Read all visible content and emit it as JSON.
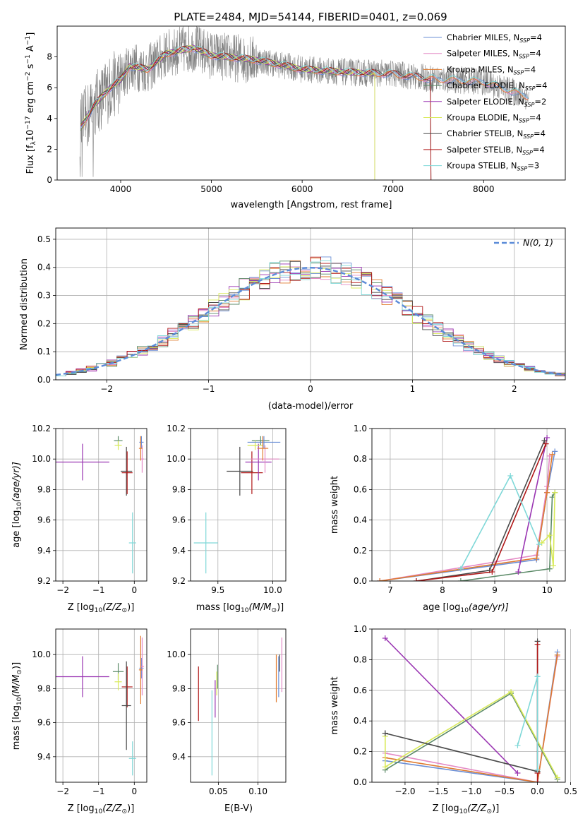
{
  "figure_title": "PLATE=2484, MJD=54144, FIBERID=0401, z=0.069",
  "colors": {
    "Chabrier MILES": "#6b8fd6",
    "Salpeter MILES": "#e48ac5",
    "Kroupa MILES": "#e07b2f",
    "Chabrier ELODIE": "#5c8b68",
    "Salpeter ELODIE": "#9a35b2",
    "Kroupa ELODIE": "#d8ea58",
    "Chabrier STELIB": "#4a4a4a",
    "Salpeter STELIB": "#b01818",
    "Kroupa STELIB": "#7fd8d8",
    "data": "#808080",
    "normal": "#5b8bd8"
  },
  "chart_data": [
    {
      "id": "spectrum",
      "type": "line",
      "title": "PLATE=2484, MJD=54144, FIBERID=0401, z=0.069",
      "xlabel": "wavelength [Angstrom, rest frame]",
      "ylabel_parts": [
        "Flux [f",
        "λ",
        "10",
        "−17",
        " erg cm",
        "−2",
        " s",
        "−1",
        " A",
        "−1",
        "]"
      ],
      "xlim": [
        3300,
        8900
      ],
      "ylim": [
        0,
        10
      ],
      "xticks": [
        4000,
        5000,
        6000,
        7000,
        8000
      ],
      "yticks": [
        0,
        2,
        4,
        6,
        8
      ],
      "grid": false,
      "legend_position": "upper-right",
      "legend": [
        {
          "name": "Chabrier MILES",
          "n": "4"
        },
        {
          "name": "Salpeter MILES",
          "n": "4"
        },
        {
          "name": "Kroupa MILES",
          "n": "4"
        },
        {
          "name": "Chabrier ELODIE",
          "n": "4"
        },
        {
          "name": "Salpeter ELODIE",
          "n": "2"
        },
        {
          "name": "Kroupa ELODIE",
          "n": "4"
        },
        {
          "name": "Chabrier STELIB",
          "n": "4"
        },
        {
          "name": "Salpeter STELIB",
          "n": "4"
        },
        {
          "name": "Kroupa STELIB",
          "n": "3"
        }
      ],
      "continuum": {
        "x": [
          3550,
          3700,
          3900,
          4000,
          4100,
          4300,
          4500,
          4800,
          5000,
          5500,
          6000,
          6500,
          7000,
          7400,
          8000,
          8500
        ],
        "y": [
          3.3,
          4.8,
          6.1,
          6.5,
          7.4,
          7.2,
          8.2,
          8.6,
          8.1,
          7.8,
          7.2,
          7.0,
          6.9,
          6.6,
          6.4,
          5.4
        ]
      },
      "model_cutoffs": [
        {
          "series": "Kroupa ELODIE",
          "end": 6800
        },
        {
          "series": "Chabrier ELODIE",
          "end": 6800
        },
        {
          "series": "Salpeter ELODIE",
          "end": 6800
        },
        {
          "series": "Chabrier STELIB",
          "end": 7420
        },
        {
          "series": "Salpeter STELIB",
          "end": 7420
        },
        {
          "series": "Kroupa STELIB",
          "end": 8500
        }
      ]
    },
    {
      "id": "residuals",
      "type": "histogram",
      "xlabel": "(data-model)/error",
      "ylabel": "Normed distribution",
      "xlim": [
        -2.5,
        2.5
      ],
      "ylim": [
        0,
        0.54
      ],
      "xticks": [
        -2,
        -1,
        0,
        1,
        2
      ],
      "yticks": [
        0.0,
        0.1,
        0.2,
        0.3,
        0.4,
        0.5
      ],
      "grid": true,
      "legend_position": "upper-right",
      "legend_label": "N(0, 1)",
      "bin_width": 0.1
    },
    {
      "id": "age_vs_Z",
      "type": "scatter",
      "xlabel_parts": [
        "Z [log",
        "10",
        "(Z/Z",
        "⊙",
        ")]"
      ],
      "ylabel_parts": [
        "age  [log",
        "10",
        "(age/yr)]"
      ],
      "xlim": [
        -2.2,
        0.35
      ],
      "ylim": [
        9.2,
        10.2
      ],
      "xticks": [
        -2,
        -1,
        0
      ],
      "yticks": [
        9.2,
        9.4,
        9.6,
        9.8,
        10.0,
        10.2
      ],
      "grid": true,
      "points": [
        {
          "series": "Salpeter ELODIE",
          "x": -1.45,
          "y": 9.98,
          "xerr": 0.75,
          "yerr": 0.12
        },
        {
          "series": "Chabrier ELODIE",
          "x": -0.45,
          "y": 10.12,
          "xerr": 0.12,
          "yerr": 0.03
        },
        {
          "series": "Kroupa ELODIE",
          "x": -0.45,
          "y": 10.09,
          "xerr": 0.1,
          "yerr": 0.03
        },
        {
          "series": "Chabrier STELIB",
          "x": -0.22,
          "y": 9.92,
          "xerr": 0.16,
          "yerr": 0.16
        },
        {
          "series": "Salpeter STELIB",
          "x": -0.2,
          "y": 9.91,
          "xerr": 0.15,
          "yerr": 0.14
        },
        {
          "series": "Kroupa STELIB",
          "x": -0.05,
          "y": 9.45,
          "xerr": 0.1,
          "yerr": 0.2
        },
        {
          "series": "Chabrier MILES",
          "x": 0.2,
          "y": 10.11,
          "xerr": 0.06,
          "yerr": 0.04
        },
        {
          "series": "Salpeter MILES",
          "x": 0.22,
          "y": 10.0,
          "xerr": 0.05,
          "yerr": 0.09
        },
        {
          "series": "Kroupa MILES",
          "x": 0.18,
          "y": 10.07,
          "xerr": 0.05,
          "yerr": 0.08
        }
      ]
    },
    {
      "id": "age_vs_mass",
      "type": "scatter",
      "xlabel_parts": [
        "mass [log",
        "10",
        "(M/M",
        "⊙",
        ")]"
      ],
      "xlim": [
        9.25,
        10.12
      ],
      "ylim": [
        9.2,
        10.2
      ],
      "xticks": [
        9.5,
        10.0
      ],
      "yticks": [
        9.2,
        9.4,
        9.6,
        9.8,
        10.0,
        10.2
      ],
      "grid": true,
      "points": [
        {
          "series": "Kroupa STELIB",
          "x": 9.39,
          "y": 9.45,
          "xerr": 0.11,
          "yerr": 0.2
        },
        {
          "series": "Chabrier STELIB",
          "x": 9.7,
          "y": 9.92,
          "xerr": 0.12,
          "yerr": 0.16
        },
        {
          "series": "Salpeter STELIB",
          "x": 9.81,
          "y": 9.91,
          "xerr": 0.1,
          "yerr": 0.14
        },
        {
          "series": "Salpeter ELODIE",
          "x": 9.87,
          "y": 9.98,
          "xerr": 0.12,
          "yerr": 0.12
        },
        {
          "series": "Chabrier ELODIE",
          "x": 9.89,
          "y": 10.12,
          "xerr": 0.08,
          "yerr": 0.03
        },
        {
          "series": "Kroupa ELODIE",
          "x": 9.84,
          "y": 10.09,
          "xerr": 0.07,
          "yerr": 0.03
        },
        {
          "series": "Chabrier MILES",
          "x": 9.92,
          "y": 10.11,
          "xerr": 0.15,
          "yerr": 0.04
        },
        {
          "series": "Salpeter MILES",
          "x": 9.93,
          "y": 10.0,
          "xerr": 0.13,
          "yerr": 0.09
        },
        {
          "series": "Kroupa MILES",
          "x": 9.91,
          "y": 10.07,
          "xerr": 0.05,
          "yerr": 0.08
        }
      ]
    },
    {
      "id": "weight_vs_age",
      "type": "line",
      "xlabel_parts": [
        "age  [log",
        "10",
        "(age/yr)]"
      ],
      "ylabel": "mass weight",
      "xlim": [
        6.65,
        10.35
      ],
      "ylim": [
        0,
        1.0
      ],
      "xticks": [
        7,
        8,
        9,
        10
      ],
      "yticks": [
        0.0,
        0.2,
        0.4,
        0.6,
        0.8,
        1.0
      ],
      "grid": true,
      "series": [
        {
          "name": "Chabrier MILES",
          "x": [
            6.8,
            9.8,
            10.0,
            10.15
          ],
          "y": [
            0.0,
            0.14,
            0.58,
            0.85
          ]
        },
        {
          "name": "Salpeter MILES",
          "x": [
            6.8,
            9.8,
            10.0,
            10.05
          ],
          "y": [
            0.0,
            0.17,
            0.62,
            0.82
          ]
        },
        {
          "name": "Kroupa MILES",
          "x": [
            6.8,
            9.8,
            10.0,
            10.1
          ],
          "y": [
            0.0,
            0.15,
            0.58,
            0.83
          ]
        },
        {
          "name": "Chabrier ELODIE",
          "x": [
            8.35,
            10.05,
            10.1,
            10.15
          ],
          "y": [
            0.0,
            0.08,
            0.55,
            0.58
          ]
        },
        {
          "name": "Salpeter ELODIE",
          "x": [
            9.45,
            10.0
          ],
          "y": [
            0.06,
            0.94
          ]
        },
        {
          "name": "Kroupa ELODIE",
          "x": [
            9.9,
            10.05,
            10.12,
            10.15
          ],
          "y": [
            0.25,
            0.3,
            0.1,
            0.58
          ]
        },
        {
          "name": "Chabrier STELIB",
          "x": [
            7.5,
            8.9,
            9.95
          ],
          "y": [
            0.0,
            0.07,
            0.92
          ]
        },
        {
          "name": "Salpeter STELIB",
          "x": [
            7.5,
            8.95,
            9.98
          ],
          "y": [
            0.0,
            0.06,
            0.9
          ]
        },
        {
          "name": "Kroupa STELIB",
          "x": [
            8.35,
            9.3,
            9.85
          ],
          "y": [
            0.08,
            0.69,
            0.24
          ]
        }
      ]
    },
    {
      "id": "mass_vs_Z",
      "type": "scatter",
      "xlabel_parts": [
        "Z [log",
        "10",
        "(Z/Z",
        "⊙",
        ")]"
      ],
      "ylabel_parts": [
        "mass [log",
        "10",
        "(M/M",
        "⊙",
        ")]"
      ],
      "xlim": [
        -2.2,
        0.35
      ],
      "ylim": [
        9.25,
        10.15
      ],
      "xticks": [
        -2,
        -1,
        0
      ],
      "yticks": [
        9.4,
        9.6,
        9.8,
        10.0
      ],
      "grid": true,
      "points": [
        {
          "series": "Salpeter ELODIE",
          "x": -1.45,
          "y": 9.87,
          "xerr": 0.75,
          "yerr": 0.12
        },
        {
          "series": "Chabrier ELODIE",
          "x": -0.45,
          "y": 9.9,
          "xerr": 0.15,
          "yerr": 0.05
        },
        {
          "series": "Kroupa ELODIE",
          "x": -0.45,
          "y": 9.84,
          "xerr": 0.1,
          "yerr": 0.05
        },
        {
          "series": "Salpeter STELIB",
          "x": -0.2,
          "y": 9.81,
          "xerr": 0.15,
          "yerr": 0.12
        },
        {
          "series": "Chabrier STELIB",
          "x": -0.22,
          "y": 9.7,
          "xerr": 0.13,
          "yerr": 0.26
        },
        {
          "series": "Kroupa STELIB",
          "x": -0.05,
          "y": 9.39,
          "xerr": 0.1,
          "yerr": 0.1
        },
        {
          "series": "Chabrier MILES",
          "x": 0.2,
          "y": 9.92,
          "xerr": 0.06,
          "yerr": 0.06
        },
        {
          "series": "Salpeter MILES",
          "x": 0.22,
          "y": 9.93,
          "xerr": 0.05,
          "yerr": 0.17
        },
        {
          "series": "Kroupa MILES",
          "x": 0.18,
          "y": 9.91,
          "xerr": 0.05,
          "yerr": 0.2
        }
      ]
    },
    {
      "id": "mass_vs_EBV",
      "type": "scatter",
      "xlabel": "E(B-V)",
      "xlim": [
        0.015,
        0.135
      ],
      "ylim": [
        9.25,
        10.15
      ],
      "xticks": [
        0.05,
        0.1
      ],
      "xtick_labels": [
        "0.05",
        "0.10"
      ],
      "yticks": [
        9.4,
        9.6,
        9.8,
        10.0
      ],
      "grid": true,
      "points": [
        {
          "series": "Salpeter STELIB",
          "x": 0.025,
          "y": 9.77,
          "yerr": 0.16
        },
        {
          "series": "Kroupa STELIB",
          "x": 0.042,
          "y": 9.54,
          "yerr": 0.25
        },
        {
          "series": "Salpeter ELODIE",
          "x": 0.046,
          "y": 9.74,
          "yerr": 0.11
        },
        {
          "series": "Chabrier ELODIE",
          "x": 0.049,
          "y": 9.87,
          "yerr": 0.07
        },
        {
          "series": "Kroupa ELODIE",
          "x": 0.048,
          "y": 9.83,
          "yerr": 0.07
        },
        {
          "series": "Kroupa MILES",
          "x": 0.123,
          "y": 9.86,
          "yerr": 0.14
        },
        {
          "series": "Chabrier MILES",
          "x": 0.126,
          "y": 9.87,
          "yerr": 0.12
        },
        {
          "series": "Salpeter MILES",
          "x": 0.13,
          "y": 9.94,
          "yerr": 0.16
        },
        {
          "series": "Chabrier STELIB",
          "x": 0.127,
          "y": 9.95,
          "yerr": 0.05
        }
      ]
    },
    {
      "id": "weight_vs_Z",
      "type": "line",
      "xlabel_parts": [
        "Z [log",
        "10",
        "(Z/Z",
        "⊙",
        ")]"
      ],
      "ylabel": "mass weight",
      "xlim": [
        -2.5,
        0.42
      ],
      "ylim": [
        0,
        1.0
      ],
      "xticks": [
        -2.0,
        -1.5,
        -1.0,
        -0.5,
        0.0,
        0.5
      ],
      "xtick_labels": [
        "−2.0",
        "−1.5",
        "−1.0",
        "−0.5",
        "0.0",
        "0.5"
      ],
      "yticks": [
        0.0,
        0.2,
        0.4,
        0.6,
        0.8,
        1.0
      ],
      "grid": true,
      "series": [
        {
          "name": "Chabrier MILES",
          "x": [
            -2.3,
            0.0,
            0.3
          ],
          "y": [
            0.14,
            0.0,
            0.85
          ]
        },
        {
          "name": "Salpeter MILES",
          "x": [
            -2.3,
            0.0,
            0.3
          ],
          "y": [
            0.19,
            0.0,
            0.82
          ]
        },
        {
          "name": "Kroupa MILES",
          "x": [
            -2.3,
            0.0,
            0.3
          ],
          "y": [
            0.16,
            0.0,
            0.83
          ]
        },
        {
          "name": "Chabrier ELODIE",
          "x": [
            -2.3,
            -0.4,
            0.3
          ],
          "y": [
            0.08,
            0.58,
            0.02
          ]
        },
        {
          "name": "Salpeter ELODIE",
          "x": [
            -2.3,
            -0.3
          ],
          "y": [
            0.94,
            0.06
          ]
        },
        {
          "name": "Kroupa ELODIE",
          "x": [
            -2.3,
            -2.3,
            -0.4,
            0.3
          ],
          "y": [
            0.3,
            0.1,
            0.59,
            0.03
          ]
        },
        {
          "name": "Chabrier STELIB",
          "x": [
            -2.3,
            -2.3,
            -0.0,
            -0.0,
            -0.0
          ],
          "y": [
            0.32,
            0.32,
            0.07,
            0.07,
            0.92
          ]
        },
        {
          "name": "Salpeter STELIB",
          "x": [
            -0.0,
            -0.0,
            -0.0
          ],
          "y": [
            0.0,
            0.06,
            0.9
          ]
        },
        {
          "name": "Kroupa STELIB",
          "x": [
            -0.3,
            0.0,
            0.0,
            0.0
          ],
          "y": [
            0.24,
            0.69,
            0.08,
            0.69
          ]
        }
      ]
    }
  ]
}
